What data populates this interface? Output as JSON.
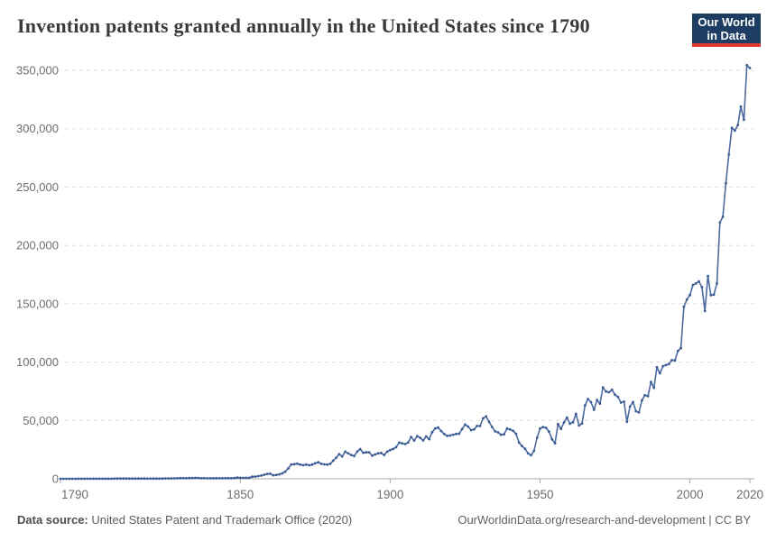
{
  "page": {
    "background_color": "#ffffff"
  },
  "header": {
    "title": "Invention patents granted annually in the United States since 1790",
    "logo": {
      "line1": "Our World",
      "line2": "in Data",
      "bg_color": "#1d3d63",
      "accent_color": "#dc3830"
    }
  },
  "footer": {
    "source_label": "Data source:",
    "source_text": "United States Patent and Trademark Office (2020)",
    "credit": "OurWorldinData.org/research-and-development | CC BY"
  },
  "chart_data": {
    "type": "line",
    "title": "Invention patents granted annually in the United States since 1790",
    "xlabel": "",
    "ylabel": "",
    "x_start": 1790,
    "x_end": 2020,
    "xticks": [
      1790,
      1850,
      1900,
      1950,
      2000,
      2020
    ],
    "yticks": [
      0,
      50000,
      100000,
      150000,
      200000,
      250000,
      300000,
      350000
    ],
    "ylim": [
      0,
      350000
    ],
    "xlim": [
      1790,
      2020
    ],
    "grid": "horizontal-dashed",
    "legend": "none",
    "line_color": "#4c6a9f",
    "marker_color": "#3a5a94",
    "axis_color": "#a8a8a8",
    "grid_color": "#dedede",
    "tick_label_color": "#6e6e6e",
    "series": [
      {
        "name": "United States",
        "values": [
          3,
          33,
          11,
          20,
          22,
          12,
          44,
          51,
          28,
          44,
          41,
          44,
          65,
          97,
          84,
          57,
          63,
          99,
          158,
          203,
          223,
          215,
          238,
          181,
          210,
          173,
          206,
          174,
          222,
          156,
          155,
          168,
          200,
          173,
          228,
          304,
          323,
          331,
          368,
          447,
          544,
          573,
          474,
          586,
          630,
          752,
          702,
          426,
          514,
          404,
          458,
          490,
          488,
          493,
          478,
          473,
          566,
          495,
          583,
          984,
          883,
          752,
          885,
          844,
          1755,
          1881,
          2302,
          2674,
          3455,
          4160,
          4357,
          3020,
          3214,
          3773,
          4630,
          6088,
          8863,
          12277,
          12526,
          12931,
          12137,
          11659,
          12180,
          11616,
          12230,
          13291,
          14169,
          12920,
          12345,
          12165,
          12903,
          15500,
          18091,
          21162,
          19118,
          23285,
          21767,
          20403,
          19551,
          23324,
          25313,
          22312,
          22647,
          22750,
          19855,
          20856,
          21822,
          22067,
          20377,
          23278,
          24644,
          25546,
          27119,
          31029,
          30258,
          29775,
          31170,
          35880,
          32735,
          36561,
          35141,
          32856,
          36198,
          33917,
          39892,
          43118,
          43892,
          40935,
          38452,
          36797,
          37060,
          37798,
          38369,
          38616,
          42574,
          46432,
          44733,
          41717,
          42357,
          45267,
          45226,
          51756,
          53458,
          48774,
          44420,
          40618,
          39782,
          37683,
          38061,
          43073,
          42238,
          41109,
          38449,
          31054,
          28053,
          25695,
          21803,
          20191,
          23963,
          35131,
          43040,
          44326,
          43616,
          40468,
          33809,
          30432,
          46918,
          42744,
          48330,
          52408,
          47170,
          48368,
          55691,
          45679,
          47378,
          62857,
          68406,
          65652,
          59104,
          67559,
          64429,
          78317,
          74810,
          74143,
          76278,
          71994,
          70226,
          65269,
          66102,
          48854,
          61819,
          65771,
          57888,
          56860,
          67200,
          71661,
          70860,
          82952,
          77924,
          95537,
          90365,
          96511,
          97444,
          98342,
          101676,
          101419,
          109645,
          111984,
          147517,
          153485,
          157494,
          166035,
          167331,
          169028,
          164293,
          143806,
          173772,
          157282,
          157772,
          167349,
          219614,
          224505,
          253155,
          277835,
          300678,
          298407,
          303049,
          318829,
          307759,
          354430,
          352013
        ]
      }
    ]
  }
}
